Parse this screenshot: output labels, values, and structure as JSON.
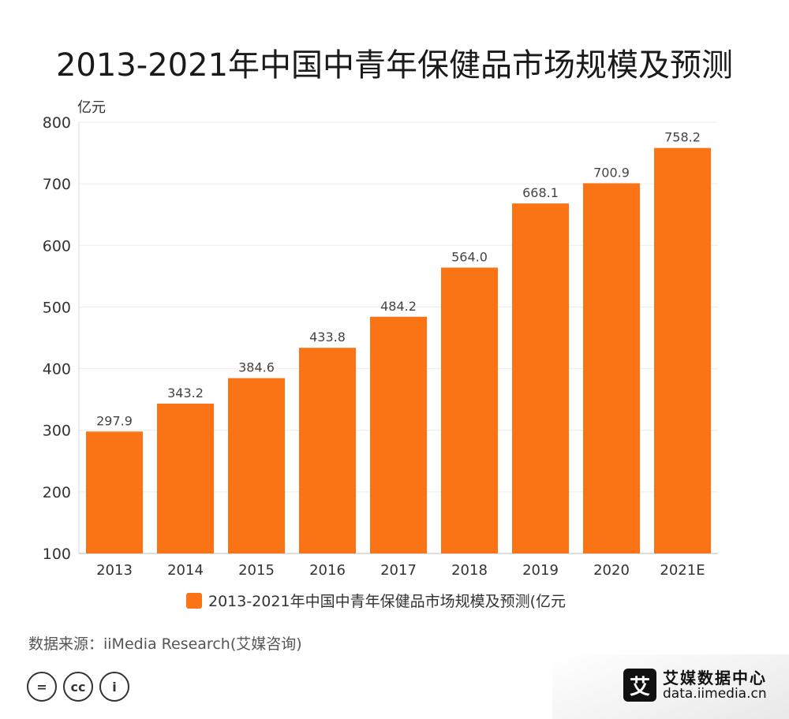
{
  "title": "2013-2021年中国中青年保健品市场规模及预测",
  "chart_data": {
    "type": "bar",
    "title": "2013-2021年中国中青年保健品市场规模及预测",
    "ylabel": "亿元",
    "xlabel": "",
    "categories": [
      "2013",
      "2014",
      "2015",
      "2016",
      "2017",
      "2018",
      "2019",
      "2020",
      "2021E"
    ],
    "series": [
      {
        "name": "2013-2021年中国中青年保健品市场规模及预测(亿元",
        "values": [
          297.9,
          343.2,
          384.6,
          433.8,
          484.2,
          564.0,
          668.1,
          700.9,
          758.2
        ],
        "labels": [
          "297.9",
          "343.2",
          "384.6",
          "433.8",
          "484.2",
          "564.0",
          "668.1",
          "700.9",
          "758.2"
        ]
      }
    ],
    "ylim": [
      100,
      800
    ],
    "yticks": [
      "100",
      "200",
      "300",
      "400",
      "500",
      "600",
      "700",
      "800"
    ],
    "grid": true,
    "legend_position": "bottom",
    "bar_color": "#fa7415"
  },
  "source": "数据来源：iiMedia Research(艾媒咨询)",
  "license_icons": [
    "=",
    "cc",
    "i"
  ],
  "brand": {
    "logo": "艾",
    "name": "艾媒数据中心",
    "url": "data.iimedia.cn"
  }
}
